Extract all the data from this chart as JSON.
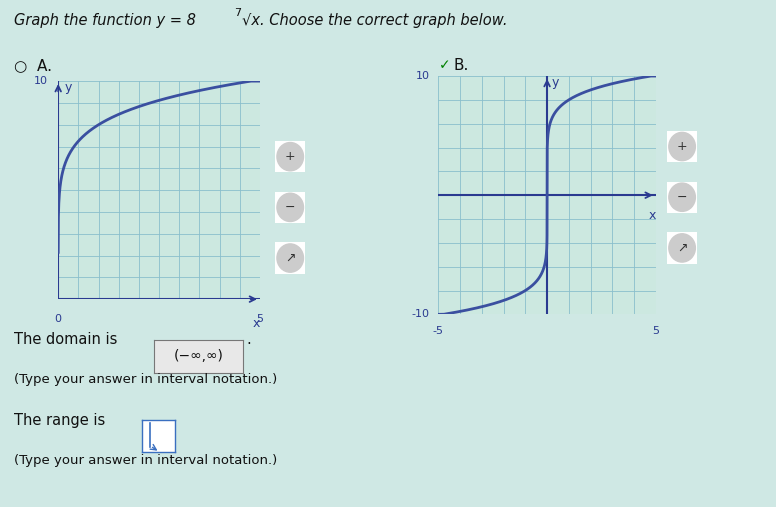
{
  "curve_color": "#3a4fa0",
  "grid_color": "#8abfcc",
  "axis_color": "#2a3a90",
  "bg_color": "#cce8e0",
  "page_bg": "#cfe8e4",
  "text_color": "#111111",
  "graph_A_xlim": [
    0,
    5
  ],
  "graph_A_ylim": [
    0,
    10
  ],
  "graph_B_xlim": [
    -5,
    5
  ],
  "graph_B_ylim": [
    -10,
    10
  ]
}
